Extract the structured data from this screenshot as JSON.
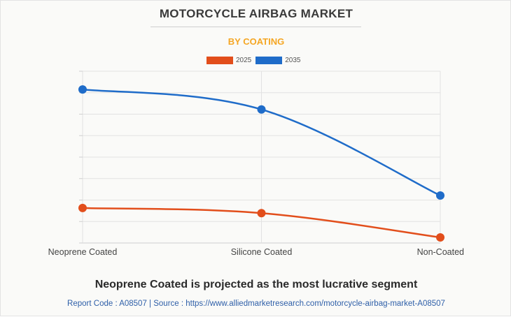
{
  "header": {
    "title": "MOTORCYCLE AIRBAG MARKET",
    "subtitle": "BY COATING"
  },
  "colors": {
    "series_2025": "#e24e1b",
    "series_2035": "#1f6cc9",
    "subtitle": "#f5a623",
    "grid": "#e2e2e2"
  },
  "chart_data": {
    "type": "line",
    "categories": [
      "Neoprene Coated",
      "Silicone Coated",
      "Non-Coated"
    ],
    "series": [
      {
        "name": "2025",
        "values": [
          16.3,
          13.9,
          2.6
        ]
      },
      {
        "name": "2035",
        "values": [
          71.5,
          62.2,
          22.1
        ]
      }
    ],
    "ylim": [
      0,
      80
    ],
    "yticks": 8,
    "grid": true,
    "legend": "top-center",
    "xlabel": "",
    "ylabel": ""
  },
  "footer": {
    "headline": "Neoprene Coated is projected as the most lucrative segment",
    "source": "Report Code : A08507  |  Source : https://www.alliedmarketresearch.com/motorcycle-airbag-market-A08507"
  }
}
